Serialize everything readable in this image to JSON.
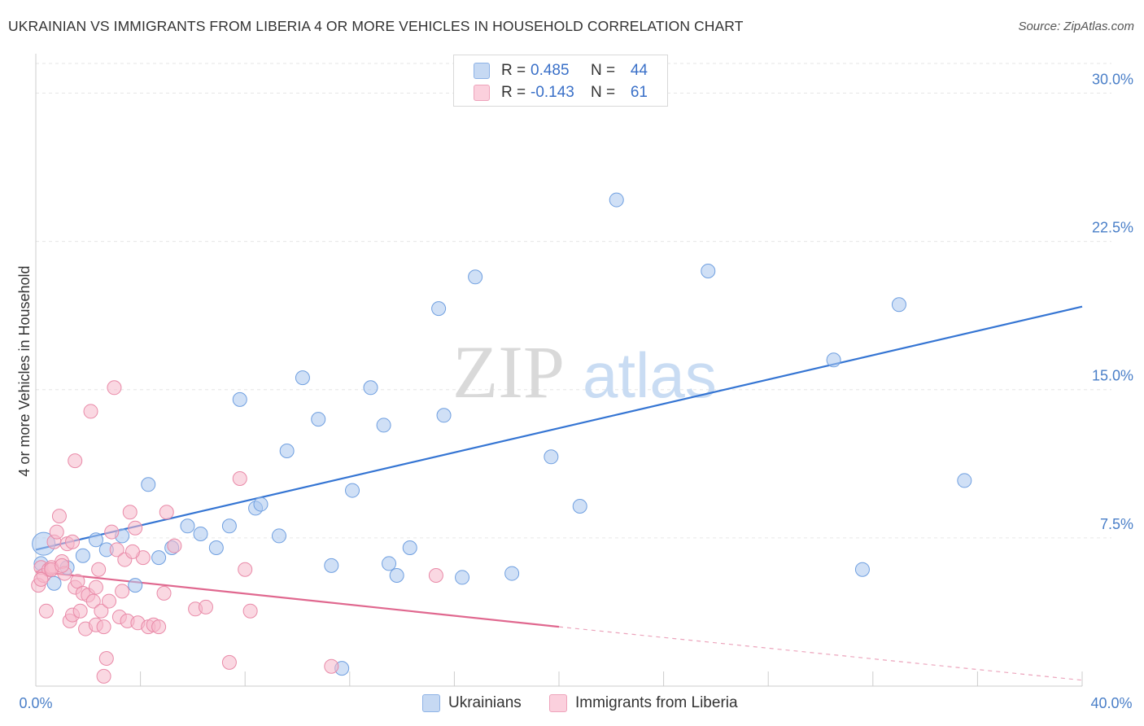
{
  "title": "UKRAINIAN VS IMMIGRANTS FROM LIBERIA 4 OR MORE VEHICLES IN HOUSEHOLD CORRELATION CHART",
  "source": "Source: ZipAtlas.com",
  "watermark": {
    "zip": "ZIP",
    "atlas": "atlas"
  },
  "legend": {
    "rows": [
      {
        "r_label": "R =",
        "r_value": "0.485",
        "n_label": "N =",
        "n_value": "44",
        "color": "#a9c6ee"
      },
      {
        "r_label": "R =",
        "r_value": "-0.143",
        "n_label": "N =",
        "n_value": "61",
        "color": "#f5b8cb"
      }
    ]
  },
  "bottom_legend": {
    "items": [
      {
        "label": "Ukrainians",
        "color": "#a9c6ee"
      },
      {
        "label": "Immigrants from Liberia",
        "color": "#f5b8cb"
      }
    ]
  },
  "chart_data": {
    "type": "scatter",
    "title": "UKRAINIAN VS IMMIGRANTS FROM LIBERIA 4 OR MORE VEHICLES IN HOUSEHOLD CORRELATION CHART",
    "xlabel": "",
    "ylabel": "4 or more Vehicles in Household",
    "xlim": [
      0,
      40
    ],
    "ylim": [
      0,
      31.5
    ],
    "x_tick_labels": [
      "0.0%",
      "40.0%"
    ],
    "y_ticks": [
      7.5,
      15.0,
      22.5,
      30.0
    ],
    "y_tick_labels": [
      "7.5%",
      "15.0%",
      "22.5%",
      "30.0%"
    ],
    "grid": true,
    "series": [
      {
        "name": "Ukrainians",
        "color": "#a9c6ee",
        "stroke": "#6f9fe0",
        "trend_color": "#3575d3",
        "trend": {
          "x0": 0.0,
          "y0": 6.9,
          "x1": 40.0,
          "y1": 19.2
        },
        "points": [
          [
            0.3,
            7.2
          ],
          [
            0.7,
            5.2
          ],
          [
            1.2,
            6.0
          ],
          [
            1.8,
            6.6
          ],
          [
            2.3,
            7.4
          ],
          [
            2.7,
            6.9
          ],
          [
            3.3,
            7.6
          ],
          [
            3.8,
            5.1
          ],
          [
            4.3,
            10.2
          ],
          [
            4.7,
            6.5
          ],
          [
            5.2,
            7.0
          ],
          [
            5.8,
            8.1
          ],
          [
            6.3,
            7.7
          ],
          [
            6.9,
            7.0
          ],
          [
            7.4,
            8.1
          ],
          [
            7.8,
            14.5
          ],
          [
            8.4,
            9.0
          ],
          [
            8.6,
            9.2
          ],
          [
            9.3,
            7.6
          ],
          [
            9.6,
            11.9
          ],
          [
            10.2,
            15.6
          ],
          [
            10.8,
            13.5
          ],
          [
            11.3,
            6.1
          ],
          [
            12.1,
            9.9
          ],
          [
            12.8,
            15.1
          ],
          [
            13.3,
            13.2
          ],
          [
            13.5,
            6.2
          ],
          [
            13.8,
            5.6
          ],
          [
            14.3,
            7.0
          ],
          [
            15.4,
            19.1
          ],
          [
            15.6,
            13.7
          ],
          [
            16.3,
            5.5
          ],
          [
            16.8,
            20.7
          ],
          [
            18.2,
            5.7
          ],
          [
            19.7,
            11.6
          ],
          [
            20.8,
            9.1
          ],
          [
            22.2,
            24.6
          ],
          [
            25.7,
            21.0
          ],
          [
            30.5,
            16.5
          ],
          [
            31.6,
            5.9
          ],
          [
            33.0,
            19.3
          ],
          [
            35.5,
            10.4
          ],
          [
            11.7,
            0.9
          ],
          [
            0.2,
            6.2
          ]
        ]
      },
      {
        "name": "Immigrants from Liberia",
        "color": "#f5b8cb",
        "stroke": "#e98aa8",
        "trend_color": "#e0688f",
        "trend": {
          "x0": 0.0,
          "y0": 5.8,
          "x1": 20.0,
          "y1": 3.0
        },
        "trend_dashed": {
          "x0": 20.0,
          "y0": 3.0,
          "x1": 40.0,
          "y1": 0.3
        },
        "points": [
          [
            0.1,
            5.1
          ],
          [
            0.2,
            6.0
          ],
          [
            0.3,
            5.6
          ],
          [
            0.4,
            3.8
          ],
          [
            0.5,
            5.9
          ],
          [
            0.6,
            6.0
          ],
          [
            0.7,
            7.3
          ],
          [
            0.8,
            7.8
          ],
          [
            0.9,
            8.6
          ],
          [
            1.0,
            6.3
          ],
          [
            1.1,
            5.7
          ],
          [
            1.2,
            7.2
          ],
          [
            1.3,
            3.3
          ],
          [
            1.4,
            3.6
          ],
          [
            1.5,
            5.0
          ],
          [
            1.5,
            11.4
          ],
          [
            1.6,
            5.3
          ],
          [
            1.7,
            3.8
          ],
          [
            1.8,
            4.7
          ],
          [
            1.9,
            2.9
          ],
          [
            2.0,
            4.6
          ],
          [
            2.1,
            13.9
          ],
          [
            2.2,
            4.3
          ],
          [
            2.3,
            3.1
          ],
          [
            2.4,
            5.9
          ],
          [
            2.5,
            3.8
          ],
          [
            2.6,
            3.0
          ],
          [
            2.7,
            1.4
          ],
          [
            2.8,
            4.3
          ],
          [
            2.9,
            7.8
          ],
          [
            3.0,
            15.1
          ],
          [
            3.1,
            6.9
          ],
          [
            3.2,
            3.5
          ],
          [
            3.3,
            4.8
          ],
          [
            3.4,
            6.4
          ],
          [
            3.5,
            3.3
          ],
          [
            3.6,
            8.8
          ],
          [
            3.8,
            8.0
          ],
          [
            3.9,
            3.2
          ],
          [
            4.1,
            6.5
          ],
          [
            4.3,
            3.0
          ],
          [
            4.5,
            3.1
          ],
          [
            4.7,
            3.0
          ],
          [
            4.9,
            4.7
          ],
          [
            5.0,
            8.8
          ],
          [
            5.3,
            7.1
          ],
          [
            6.1,
            3.9
          ],
          [
            6.5,
            4.0
          ],
          [
            7.4,
            1.2
          ],
          [
            7.8,
            10.5
          ],
          [
            8.0,
            5.9
          ],
          [
            8.2,
            3.8
          ],
          [
            11.3,
            1.0
          ],
          [
            15.3,
            5.6
          ],
          [
            0.2,
            5.4
          ],
          [
            0.6,
            5.9
          ],
          [
            1.0,
            6.1
          ],
          [
            1.4,
            7.3
          ],
          [
            2.3,
            5.0
          ],
          [
            2.6,
            0.5
          ],
          [
            3.7,
            6.8
          ]
        ]
      }
    ]
  }
}
